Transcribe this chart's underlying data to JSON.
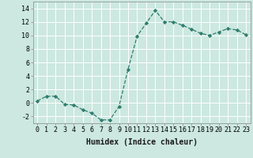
{
  "x": [
    0,
    1,
    2,
    3,
    4,
    5,
    6,
    7,
    8,
    9,
    10,
    11,
    12,
    13,
    14,
    15,
    16,
    17,
    18,
    19,
    20,
    21,
    22,
    23
  ],
  "y": [
    0.3,
    1.0,
    1.0,
    -0.2,
    -0.3,
    -1.0,
    -1.5,
    -2.5,
    -2.5,
    -0.5,
    5.0,
    9.9,
    11.8,
    13.7,
    12.0,
    12.0,
    11.5,
    10.9,
    10.3,
    10.0,
    10.5,
    11.0,
    10.8,
    10.1
  ],
  "line_color": "#2e7d6e",
  "marker": "D",
  "marker_size": 2.2,
  "bg_color": "#cce8e0",
  "grid_color": "#ffffff",
  "xlabel": "Humidex (Indice chaleur)",
  "xlim": [
    -0.5,
    23.5
  ],
  "ylim": [
    -3,
    15
  ],
  "yticks": [
    -2,
    0,
    2,
    4,
    6,
    8,
    10,
    12,
    14
  ],
  "xticks": [
    0,
    1,
    2,
    3,
    4,
    5,
    6,
    7,
    8,
    9,
    10,
    11,
    12,
    13,
    14,
    15,
    16,
    17,
    18,
    19,
    20,
    21,
    22,
    23
  ],
  "xtick_labels": [
    "0",
    "1",
    "2",
    "3",
    "4",
    "5",
    "6",
    "7",
    "8",
    "9",
    "10",
    "11",
    "12",
    "13",
    "14",
    "15",
    "16",
    "17",
    "18",
    "19",
    "20",
    "21",
    "22",
    "23"
  ],
  "label_fontsize": 7.0,
  "tick_fontsize": 6.0,
  "linewidth": 0.9
}
